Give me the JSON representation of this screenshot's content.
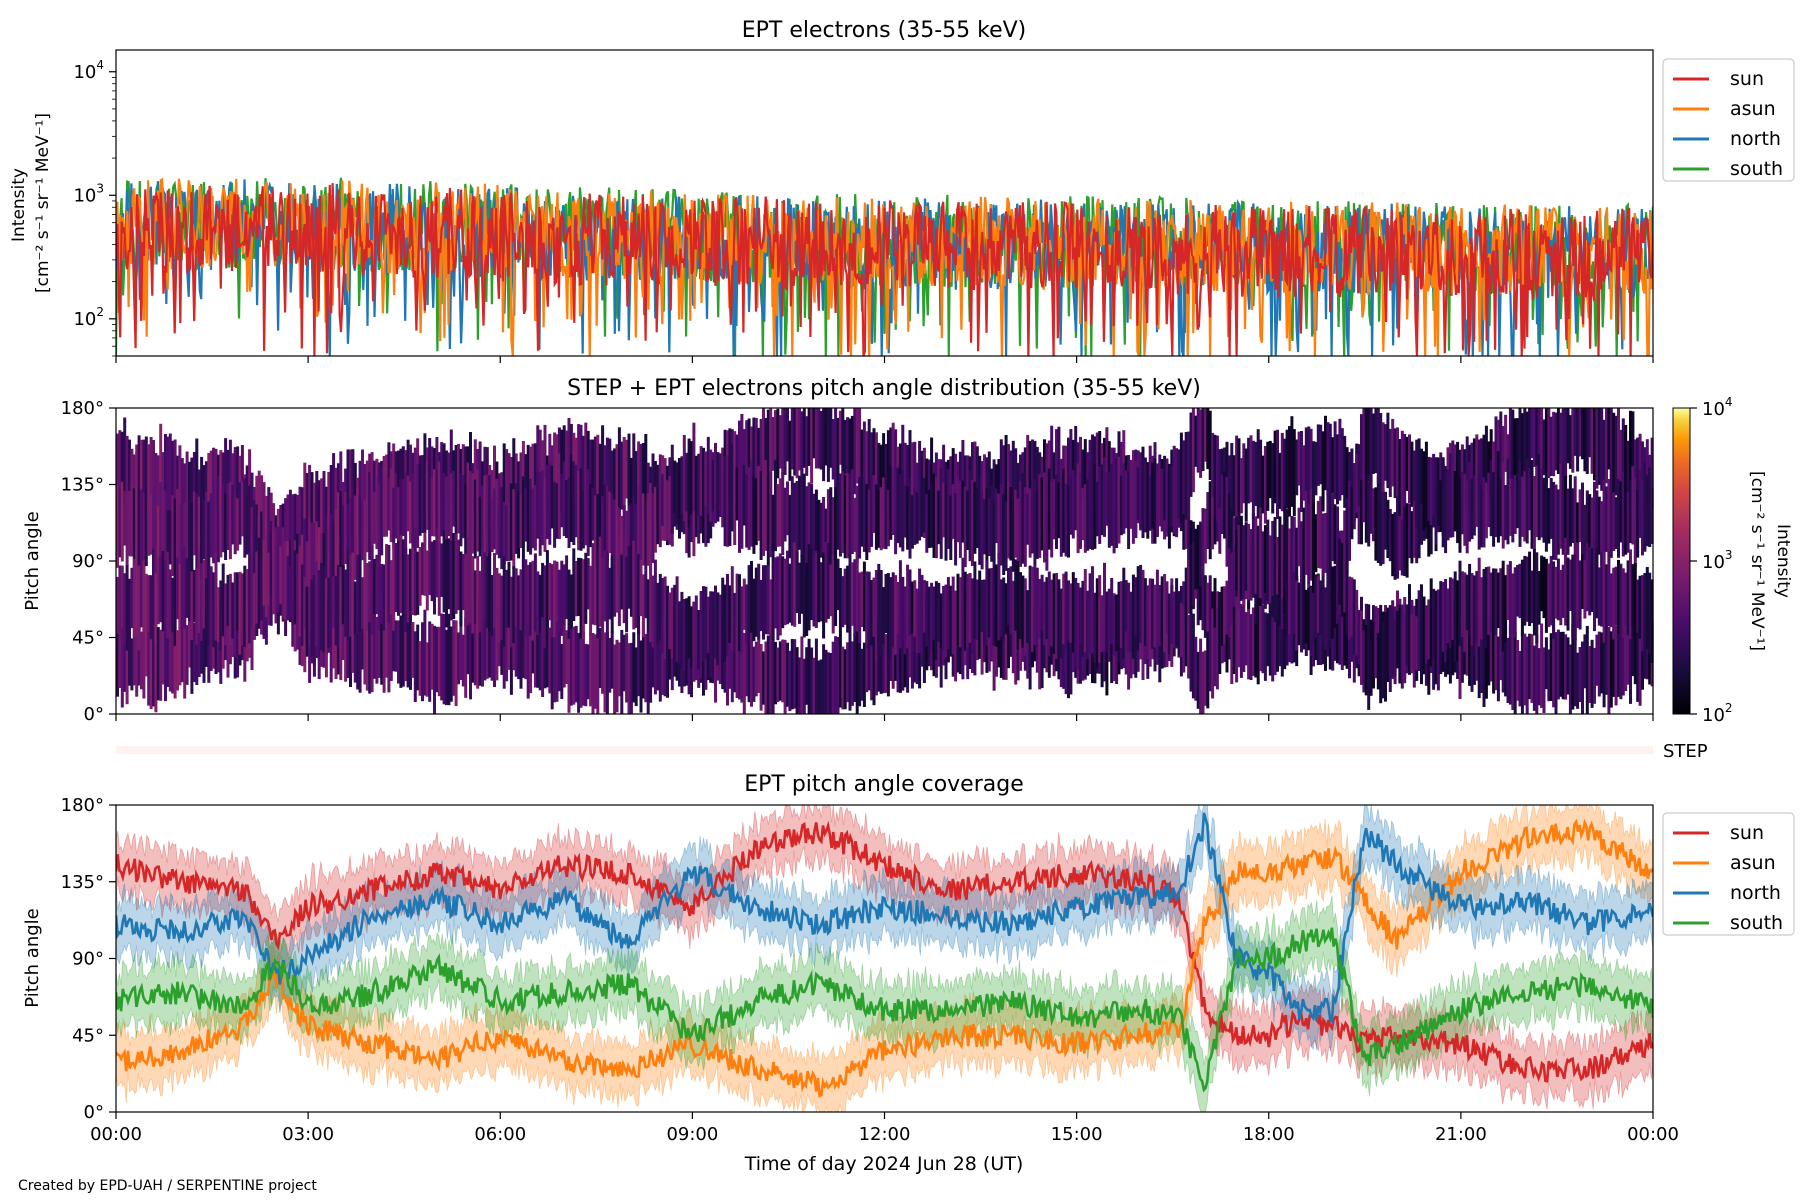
{
  "footer": {
    "credit": "Created by EPD-UAH / SERPENTINE project"
  },
  "shared_x_axis": {
    "label": "Time of day 2024 Jun 28 (UT)",
    "range_hours": [
      0,
      24
    ],
    "tick_hours": [
      0,
      3,
      6,
      9,
      12,
      15,
      18,
      21,
      24
    ],
    "tick_labels": [
      "00:00",
      "03:00",
      "06:00",
      "09:00",
      "12:00",
      "15:00",
      "18:00",
      "21:00",
      "00:00"
    ]
  },
  "chart_data": [
    {
      "type": "line",
      "title": "EPT electrons (35-55 keV)",
      "ylabel_line1": "Intensity",
      "ylabel_line2": "[cm⁻² s⁻¹ sr⁻¹ MeV⁻¹]",
      "yscale": "log",
      "ylim": [
        50,
        15000
      ],
      "ytick_values": [
        100,
        1000,
        10000
      ],
      "ytick_base": "10",
      "ytick_exponents": [
        "2",
        "3",
        "4"
      ],
      "legend_position": "outside-right",
      "colors": {
        "sun": "#d62728",
        "asun": "#ff7f0e",
        "north": "#1f77b4",
        "south": "#2ca02c"
      },
      "series": [
        {
          "name": "sun",
          "color": "#d62728",
          "hours": [
            0,
            2,
            4,
            6,
            8,
            10,
            12,
            14,
            16,
            18,
            20,
            22,
            24
          ],
          "values": [
            520,
            560,
            520,
            470,
            430,
            420,
            390,
            380,
            370,
            350,
            340,
            330,
            330
          ]
        },
        {
          "name": "asun",
          "color": "#ff7f0e",
          "hours": [
            0,
            2,
            4,
            6,
            8,
            10,
            12,
            14,
            16,
            18,
            20,
            22,
            24
          ],
          "values": [
            560,
            600,
            560,
            520,
            470,
            450,
            420,
            410,
            400,
            380,
            370,
            360,
            350
          ]
        },
        {
          "name": "north",
          "color": "#1f77b4",
          "hours": [
            0,
            2,
            4,
            6,
            8,
            10,
            12,
            14,
            16,
            18,
            20,
            22,
            24
          ],
          "values": [
            540,
            580,
            540,
            500,
            450,
            430,
            410,
            400,
            390,
            370,
            360,
            350,
            340
          ]
        },
        {
          "name": "south",
          "color": "#2ca02c",
          "hours": [
            0,
            2,
            4,
            6,
            8,
            10,
            12,
            14,
            16,
            18,
            20,
            22,
            24
          ],
          "values": [
            580,
            620,
            580,
            530,
            480,
            460,
            430,
            420,
            410,
            390,
            380,
            370,
            360
          ]
        }
      ]
    },
    {
      "type": "heatmap",
      "title": "STEP + EPT electrons pitch angle distribution (35-55 keV)",
      "ylabel": "Pitch angle",
      "ylim": [
        0,
        180
      ],
      "ytick_values": [
        0,
        45,
        90,
        135,
        180
      ],
      "ytick_labels": [
        "0°",
        "45°",
        "90°",
        "135°",
        "180°"
      ],
      "colorbar_label_line1": "Intensity",
      "colorbar_label_line2": "[cm⁻² s⁻¹ sr⁻¹ MeV⁻¹]",
      "colorbar_scale": "log",
      "colorbar_range": [
        100,
        10000
      ],
      "colorbar_ticks": [
        100,
        1000,
        10000
      ],
      "colorbar_base": "10",
      "colorbar_exponents": [
        "2",
        "3",
        "4"
      ],
      "colormap": "inferno",
      "intensity_by_hour": {
        "hours": [
          0,
          3,
          6,
          9,
          12,
          15,
          18,
          21,
          24
        ],
        "values": [
          480,
          450,
          400,
          380,
          330,
          320,
          300,
          290,
          280
        ]
      }
    },
    {
      "type": "line",
      "title": "STEP",
      "note": "thin empty strip row",
      "strip_label": "STEP"
    },
    {
      "type": "line",
      "title": "EPT pitch angle coverage",
      "ylabel": "Pitch angle",
      "ylim": [
        0,
        180
      ],
      "ytick_values": [
        0,
        45,
        90,
        135,
        180
      ],
      "ytick_labels": [
        "0°",
        "45°",
        "90°",
        "135°",
        "180°"
      ],
      "legend_position": "outside-right",
      "band_halfwidth_deg": 15,
      "series": [
        {
          "name": "sun",
          "color": "#d62728",
          "hours": [
            0,
            1,
            2,
            2.5,
            3,
            4,
            5,
            6,
            7,
            8,
            9,
            10,
            11,
            12,
            13,
            14,
            15,
            16,
            16.6,
            17,
            17.5,
            18,
            18.5,
            19,
            19.5,
            20,
            21,
            22,
            23,
            24
          ],
          "values": [
            145,
            135,
            130,
            100,
            120,
            130,
            140,
            130,
            145,
            140,
            120,
            155,
            165,
            145,
            130,
            135,
            140,
            135,
            125,
            60,
            45,
            45,
            55,
            50,
            40,
            45,
            40,
            25,
            25,
            40
          ]
        },
        {
          "name": "asun",
          "color": "#ff7f0e",
          "hours": [
            0,
            1,
            2,
            2.5,
            3,
            4,
            5,
            6,
            7,
            8,
            9,
            10,
            11,
            12,
            13,
            14,
            15,
            16,
            16.6,
            17,
            17.5,
            18,
            18.5,
            19,
            19.5,
            20,
            21,
            22,
            23,
            24
          ],
          "values": [
            30,
            35,
            50,
            80,
            50,
            40,
            30,
            45,
            30,
            25,
            40,
            25,
            15,
            35,
            45,
            45,
            40,
            45,
            50,
            110,
            140,
            140,
            145,
            150,
            125,
            100,
            140,
            160,
            165,
            140
          ]
        },
        {
          "name": "north",
          "color": "#1f77b4",
          "hours": [
            0,
            1,
            2,
            2.5,
            3,
            4,
            5,
            6,
            7,
            8,
            9,
            10,
            11,
            12,
            13,
            14,
            15,
            16,
            16.6,
            17,
            17.5,
            18,
            18.5,
            19,
            19.5,
            20,
            21,
            22,
            23,
            24
          ],
          "values": [
            110,
            105,
            115,
            80,
            90,
            115,
            125,
            110,
            125,
            100,
            140,
            120,
            110,
            120,
            115,
            110,
            120,
            125,
            130,
            170,
            90,
            80,
            60,
            60,
            165,
            145,
            120,
            125,
            110,
            120
          ]
        },
        {
          "name": "south",
          "color": "#2ca02c",
          "hours": [
            0,
            1,
            2,
            2.5,
            3,
            4,
            5,
            6,
            7,
            8,
            9,
            10,
            11,
            12,
            13,
            14,
            15,
            16,
            16.6,
            17,
            17.5,
            18,
            18.5,
            19,
            19.5,
            20,
            21,
            22,
            23,
            24
          ],
          "values": [
            65,
            70,
            60,
            90,
            60,
            70,
            85,
            65,
            70,
            75,
            45,
            65,
            75,
            60,
            60,
            65,
            55,
            60,
            55,
            15,
            90,
            90,
            100,
            105,
            30,
            40,
            60,
            70,
            75,
            60
          ]
        }
      ]
    }
  ]
}
